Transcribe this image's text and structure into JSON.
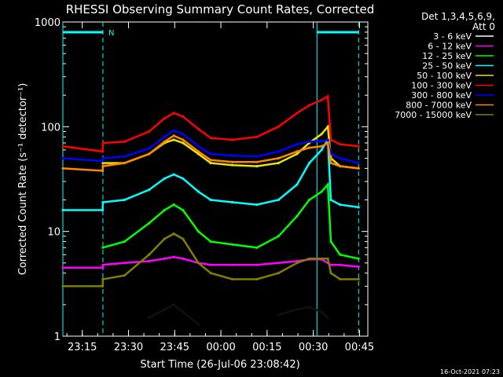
{
  "chart_data": {
    "type": "line",
    "title": "RHESSI Observing Summary Count Rates, Corrected",
    "xlabel": "Start Time (26-Jul-06 23:08:42)",
    "ylabel": "Corrected Count Rate (s⁻¹ detector⁻¹)",
    "yscale": "log",
    "ylim": [
      1,
      1000
    ],
    "xlim_minutes_after_start": [
      0,
      99
    ],
    "y_ticks": [
      "1",
      "10",
      "100",
      "1000"
    ],
    "x_ticks": [
      {
        "label": "23:15",
        "minute": 6.3
      },
      {
        "label": "23:30",
        "minute": 21.3
      },
      {
        "label": "23:45",
        "minute": 36.3
      },
      {
        "label": "00:00",
        "minute": 51.3
      },
      {
        "label": "00:15",
        "minute": 66.3
      },
      {
        "label": "00:30",
        "minute": 81.3
      },
      {
        "label": "00:45",
        "minute": 96.3
      }
    ],
    "legend_header": [
      "Det 1,3,4,5,6,9,",
      "Att 0"
    ],
    "legend_position": "right, outside plot",
    "timestamp": "16-Oct-2021 07:23",
    "flag_marker": "N",
    "flag_segments": [
      [
        0,
        13
      ],
      [
        82.5,
        96
      ]
    ],
    "vertical_markers_minutes": [
      0,
      13,
      82.5,
      96
    ],
    "x_sample_minutes": [
      0,
      12.9,
      13,
      20,
      28,
      33,
      36,
      39,
      44,
      48,
      55,
      63,
      70,
      76,
      80,
      84,
      86,
      87,
      90,
      96
    ],
    "series": [
      {
        "name": "3 - 6 keV",
        "color": "#000000",
        "values": [
          null,
          null,
          null,
          null,
          1.5,
          1.8,
          2.0,
          1.7,
          1.3,
          null,
          null,
          null,
          1.6,
          1.8,
          1.9,
          1.7,
          1.5,
          null,
          null,
          null
        ]
      },
      {
        "name": "6 - 12 keV",
        "color": "#ff00ff",
        "values": [
          4.5,
          4.5,
          4.8,
          5.0,
          5.2,
          5.5,
          5.7,
          5.5,
          5.0,
          4.8,
          4.8,
          4.8,
          5.0,
          5.2,
          5.4,
          5.4,
          5.0,
          4.8,
          4.8,
          4.6
        ]
      },
      {
        "name": "12 - 25 keV",
        "color": "#00ff00",
        "values": [
          null,
          null,
          7,
          8,
          12,
          16,
          18,
          16,
          10,
          8,
          7.5,
          7,
          9,
          14,
          20,
          24,
          28,
          8,
          6,
          5.5
        ]
      },
      {
        "name": "25 - 50 keV",
        "color": "#00ffff",
        "values": [
          16,
          16,
          19,
          20,
          25,
          32,
          35,
          32,
          24,
          20,
          19,
          18,
          20,
          28,
          45,
          60,
          75,
          20,
          18,
          17
        ]
      },
      {
        "name": "50 - 100 keV",
        "color": "#e6e600",
        "values": [
          null,
          null,
          45,
          45,
          55,
          70,
          75,
          70,
          55,
          45,
          43,
          42,
          45,
          55,
          70,
          85,
          100,
          50,
          42,
          40
        ]
      },
      {
        "name": "100 - 300 keV",
        "color": "#ff0000",
        "values": [
          65,
          58,
          70,
          72,
          90,
          120,
          135,
          125,
          95,
          78,
          75,
          80,
          100,
          135,
          160,
          180,
          195,
          75,
          68,
          65
        ]
      },
      {
        "name": "300 - 800 keV",
        "color": "#0000ff",
        "values": [
          50,
          47,
          50,
          52,
          62,
          80,
          92,
          85,
          65,
          55,
          53,
          52,
          58,
          68,
          72,
          73,
          75,
          55,
          50,
          45
        ]
      },
      {
        "name": "800 - 7000 keV",
        "color": "#ff8800",
        "values": [
          40,
          38,
          42,
          45,
          55,
          72,
          82,
          75,
          58,
          48,
          46,
          46,
          50,
          58,
          63,
          65,
          70,
          45,
          42,
          40
        ]
      },
      {
        "name": "7000 - 15000 keV",
        "color": "#808000",
        "values": [
          3,
          3,
          3.5,
          3.8,
          6,
          8.5,
          9.5,
          8.5,
          5,
          4,
          3.5,
          3.5,
          4,
          5,
          5.5,
          5.5,
          5.5,
          4,
          3.5,
          3.5
        ]
      }
    ]
  },
  "colors": {
    "background": "#000000",
    "axes": "#ffffff",
    "markers": "#00ffff"
  }
}
